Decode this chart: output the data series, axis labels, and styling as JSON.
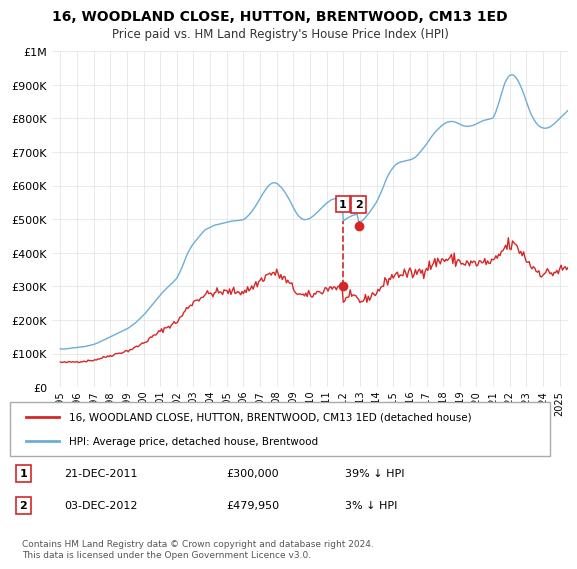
{
  "title": "16, WOODLAND CLOSE, HUTTON, BRENTWOOD, CM13 1ED",
  "subtitle": "Price paid vs. HM Land Registry's House Price Index (HPI)",
  "legend_line1": "16, WOODLAND CLOSE, HUTTON, BRENTWOOD, CM13 1ED (detached house)",
  "legend_line2": "HPI: Average price, detached house, Brentwood",
  "transactions": [
    {
      "num": 1,
      "date": "21-DEC-2011",
      "price": "£300,000",
      "hpi": "39% ↓ HPI"
    },
    {
      "num": 2,
      "date": "03-DEC-2012",
      "price": "£479,950",
      "hpi": "3% ↓ HPI"
    }
  ],
  "footnote": "Contains HM Land Registry data © Crown copyright and database right 2024.\nThis data is licensed under the Open Government Licence v3.0.",
  "hpi_color": "#6baed6",
  "price_color": "#d62728",
  "sale1_date": 2011.97,
  "sale2_date": 2012.92,
  "sale1_price": 300000,
  "sale2_price": 479950,
  "ylim": [
    0,
    1000000
  ],
  "xlim_start": 1994.5,
  "xlim_end": 2025.5,
  "background_color": "#ffffff",
  "grid_color": "#e0e0e0",
  "hpi_data_y": [
    115000,
    114000,
    113500,
    114000,
    114500,
    115000,
    115500,
    116000,
    116500,
    117000,
    117500,
    118000,
    118500,
    119000,
    119500,
    120000,
    120500,
    121000,
    121500,
    122500,
    123500,
    124500,
    125500,
    126500,
    127500,
    129000,
    130500,
    132000,
    134000,
    136000,
    138000,
    140000,
    142000,
    144000,
    146000,
    148000,
    150000,
    152000,
    154000,
    156000,
    158000,
    160000,
    162000,
    164000,
    166000,
    168000,
    170000,
    172000,
    174000,
    176000,
    179000,
    182000,
    185000,
    188000,
    191000,
    195000,
    199000,
    203000,
    207000,
    211000,
    215000,
    219000,
    224000,
    229000,
    234000,
    239000,
    244000,
    249000,
    254000,
    259000,
    264000,
    269000,
    274000,
    279000,
    284000,
    288000,
    292000,
    296000,
    300000,
    304000,
    308000,
    312000,
    316000,
    320000,
    325000,
    333000,
    341000,
    350000,
    360000,
    370000,
    381000,
    391000,
    400000,
    408000,
    415000,
    422000,
    428000,
    433000,
    438000,
    443000,
    448000,
    453000,
    458000,
    463000,
    467000,
    470000,
    472000,
    474000,
    476000,
    478000,
    480000,
    482000,
    483000,
    484000,
    485000,
    486000,
    487000,
    488000,
    489000,
    490000,
    491000,
    492000,
    493000,
    494000,
    494500,
    495000,
    495500,
    496000,
    496500,
    497000,
    497500,
    498000,
    499000,
    502000,
    505000,
    509000,
    513000,
    518000,
    523000,
    529000,
    535000,
    541000,
    548000,
    555000,
    562000,
    569000,
    576000,
    582000,
    588000,
    594000,
    599000,
    603000,
    606000,
    608000,
    609000,
    608000,
    607000,
    604000,
    600000,
    596000,
    591000,
    586000,
    580000,
    573000,
    566000,
    559000,
    551000,
    543000,
    535000,
    527000,
    520000,
    514000,
    509000,
    505000,
    502000,
    500000,
    499000,
    499000,
    500000,
    501000,
    503000,
    506000,
    509000,
    512000,
    516000,
    520000,
    524000,
    528000,
    532000,
    536000,
    540000,
    544000,
    548000,
    551000,
    554000,
    557000,
    559000,
    560000,
    561000,
    561000,
    561000,
    560000,
    559000,
    558000,
    495000,
    498000,
    501000,
    504000,
    506000,
    508000,
    510000,
    512000,
    513000,
    514000,
    515000,
    494000,
    493000,
    494000,
    497000,
    501000,
    506000,
    511000,
    516000,
    521000,
    527000,
    533000,
    539000,
    545000,
    552000,
    560000,
    569000,
    578000,
    588000,
    598000,
    609000,
    619000,
    628000,
    636000,
    643000,
    649000,
    654000,
    659000,
    663000,
    666000,
    668000,
    670000,
    671000,
    672000,
    673000,
    674000,
    675000,
    676000,
    677000,
    678000,
    680000,
    682000,
    685000,
    689000,
    693000,
    698000,
    703000,
    708000,
    713000,
    718000,
    724000,
    730000,
    736000,
    742000,
    748000,
    753000,
    758000,
    763000,
    767000,
    771000,
    775000,
    779000,
    782000,
    785000,
    787000,
    789000,
    790000,
    791000,
    791000,
    791000,
    790000,
    789000,
    787000,
    785000,
    783000,
    781000,
    779000,
    778000,
    777000,
    777000,
    777000,
    777000,
    778000,
    779000,
    780000,
    782000,
    784000,
    786000,
    788000,
    790000,
    792000,
    794000,
    795000,
    796000,
    797000,
    798000,
    799000,
    800000,
    802000,
    810000,
    820000,
    832000,
    845000,
    859000,
    874000,
    888000,
    900000,
    910000,
    918000,
    924000,
    928000,
    930000,
    930000,
    928000,
    924000,
    919000,
    912000,
    904000,
    895000,
    885000,
    874000,
    862000,
    850000,
    838000,
    827000,
    817000,
    808000,
    800000,
    793000,
    787000,
    782000,
    778000,
    775000,
    773000,
    772000,
    771000,
    771000,
    772000,
    773000,
    775000,
    778000,
    781000,
    784000,
    788000,
    792000,
    796000,
    800000,
    804000,
    808000,
    812000,
    816000,
    820000,
    824000,
    828000
  ],
  "hpi_start_year": 1995.0,
  "hpi_month_step": 0.08333333333,
  "marker_box_color": "#d62728",
  "marker_box_bg": "#ffffff"
}
